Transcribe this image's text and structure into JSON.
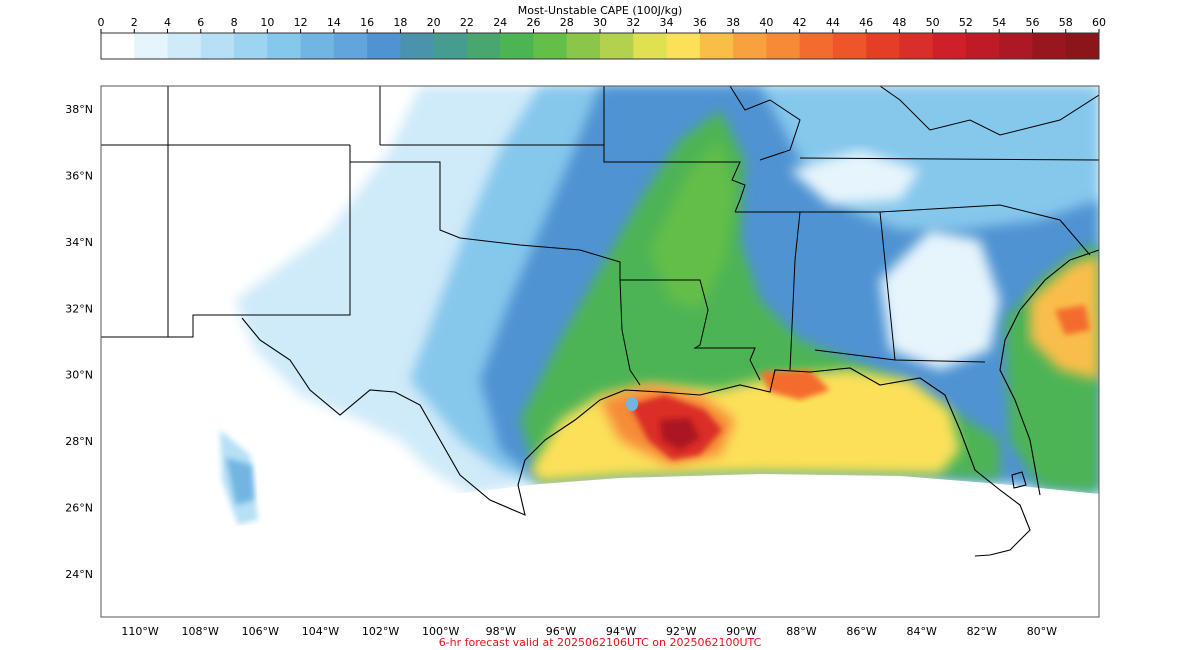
{
  "colorbar": {
    "title": "Most-Unstable CAPE (100J/kg)",
    "ticks": [
      0,
      2,
      4,
      6,
      8,
      10,
      12,
      14,
      16,
      18,
      20,
      22,
      24,
      26,
      28,
      30,
      32,
      34,
      36,
      38,
      40,
      42,
      44,
      46,
      48,
      50,
      52,
      54,
      56,
      58,
      60
    ],
    "colors": [
      "#ffffff",
      "#e6f4fc",
      "#cfeaf9",
      "#b6e0f6",
      "#9dd4f2",
      "#86c7ec",
      "#72b5e2",
      "#62a4db",
      "#4f93d2",
      "#4b92ac",
      "#469c8e",
      "#48a66e",
      "#4db454",
      "#64be48",
      "#8ac64a",
      "#b2d14e",
      "#dfe052",
      "#fce05a",
      "#f9be48",
      "#f7a23e",
      "#f68a37",
      "#f36c2f",
      "#ee5629",
      "#e43f26",
      "#da2f28",
      "#cf1f29",
      "#bf1b27",
      "#ac1823",
      "#99161f",
      "#8a161c"
    ]
  },
  "map": {
    "lon_labels": [
      "110°W",
      "108°W",
      "106°W",
      "104°W",
      "102°W",
      "100°W",
      "98°W",
      "96°W",
      "94°W",
      "92°W",
      "90°W",
      "88°W",
      "86°W",
      "84°W",
      "82°W",
      "80°W"
    ],
    "lat_labels": [
      "38°N",
      "36°N",
      "34°N",
      "32°N",
      "30°N",
      "28°N",
      "26°N",
      "24°N"
    ],
    "extent": {
      "lon_min": -111.3,
      "lon_max": -78.1,
      "lat_min": 22.7,
      "lat_max": 38.7
    }
  },
  "caption": "6-hr forecast valid at 2025062106UTC on 2025062100UTC"
}
